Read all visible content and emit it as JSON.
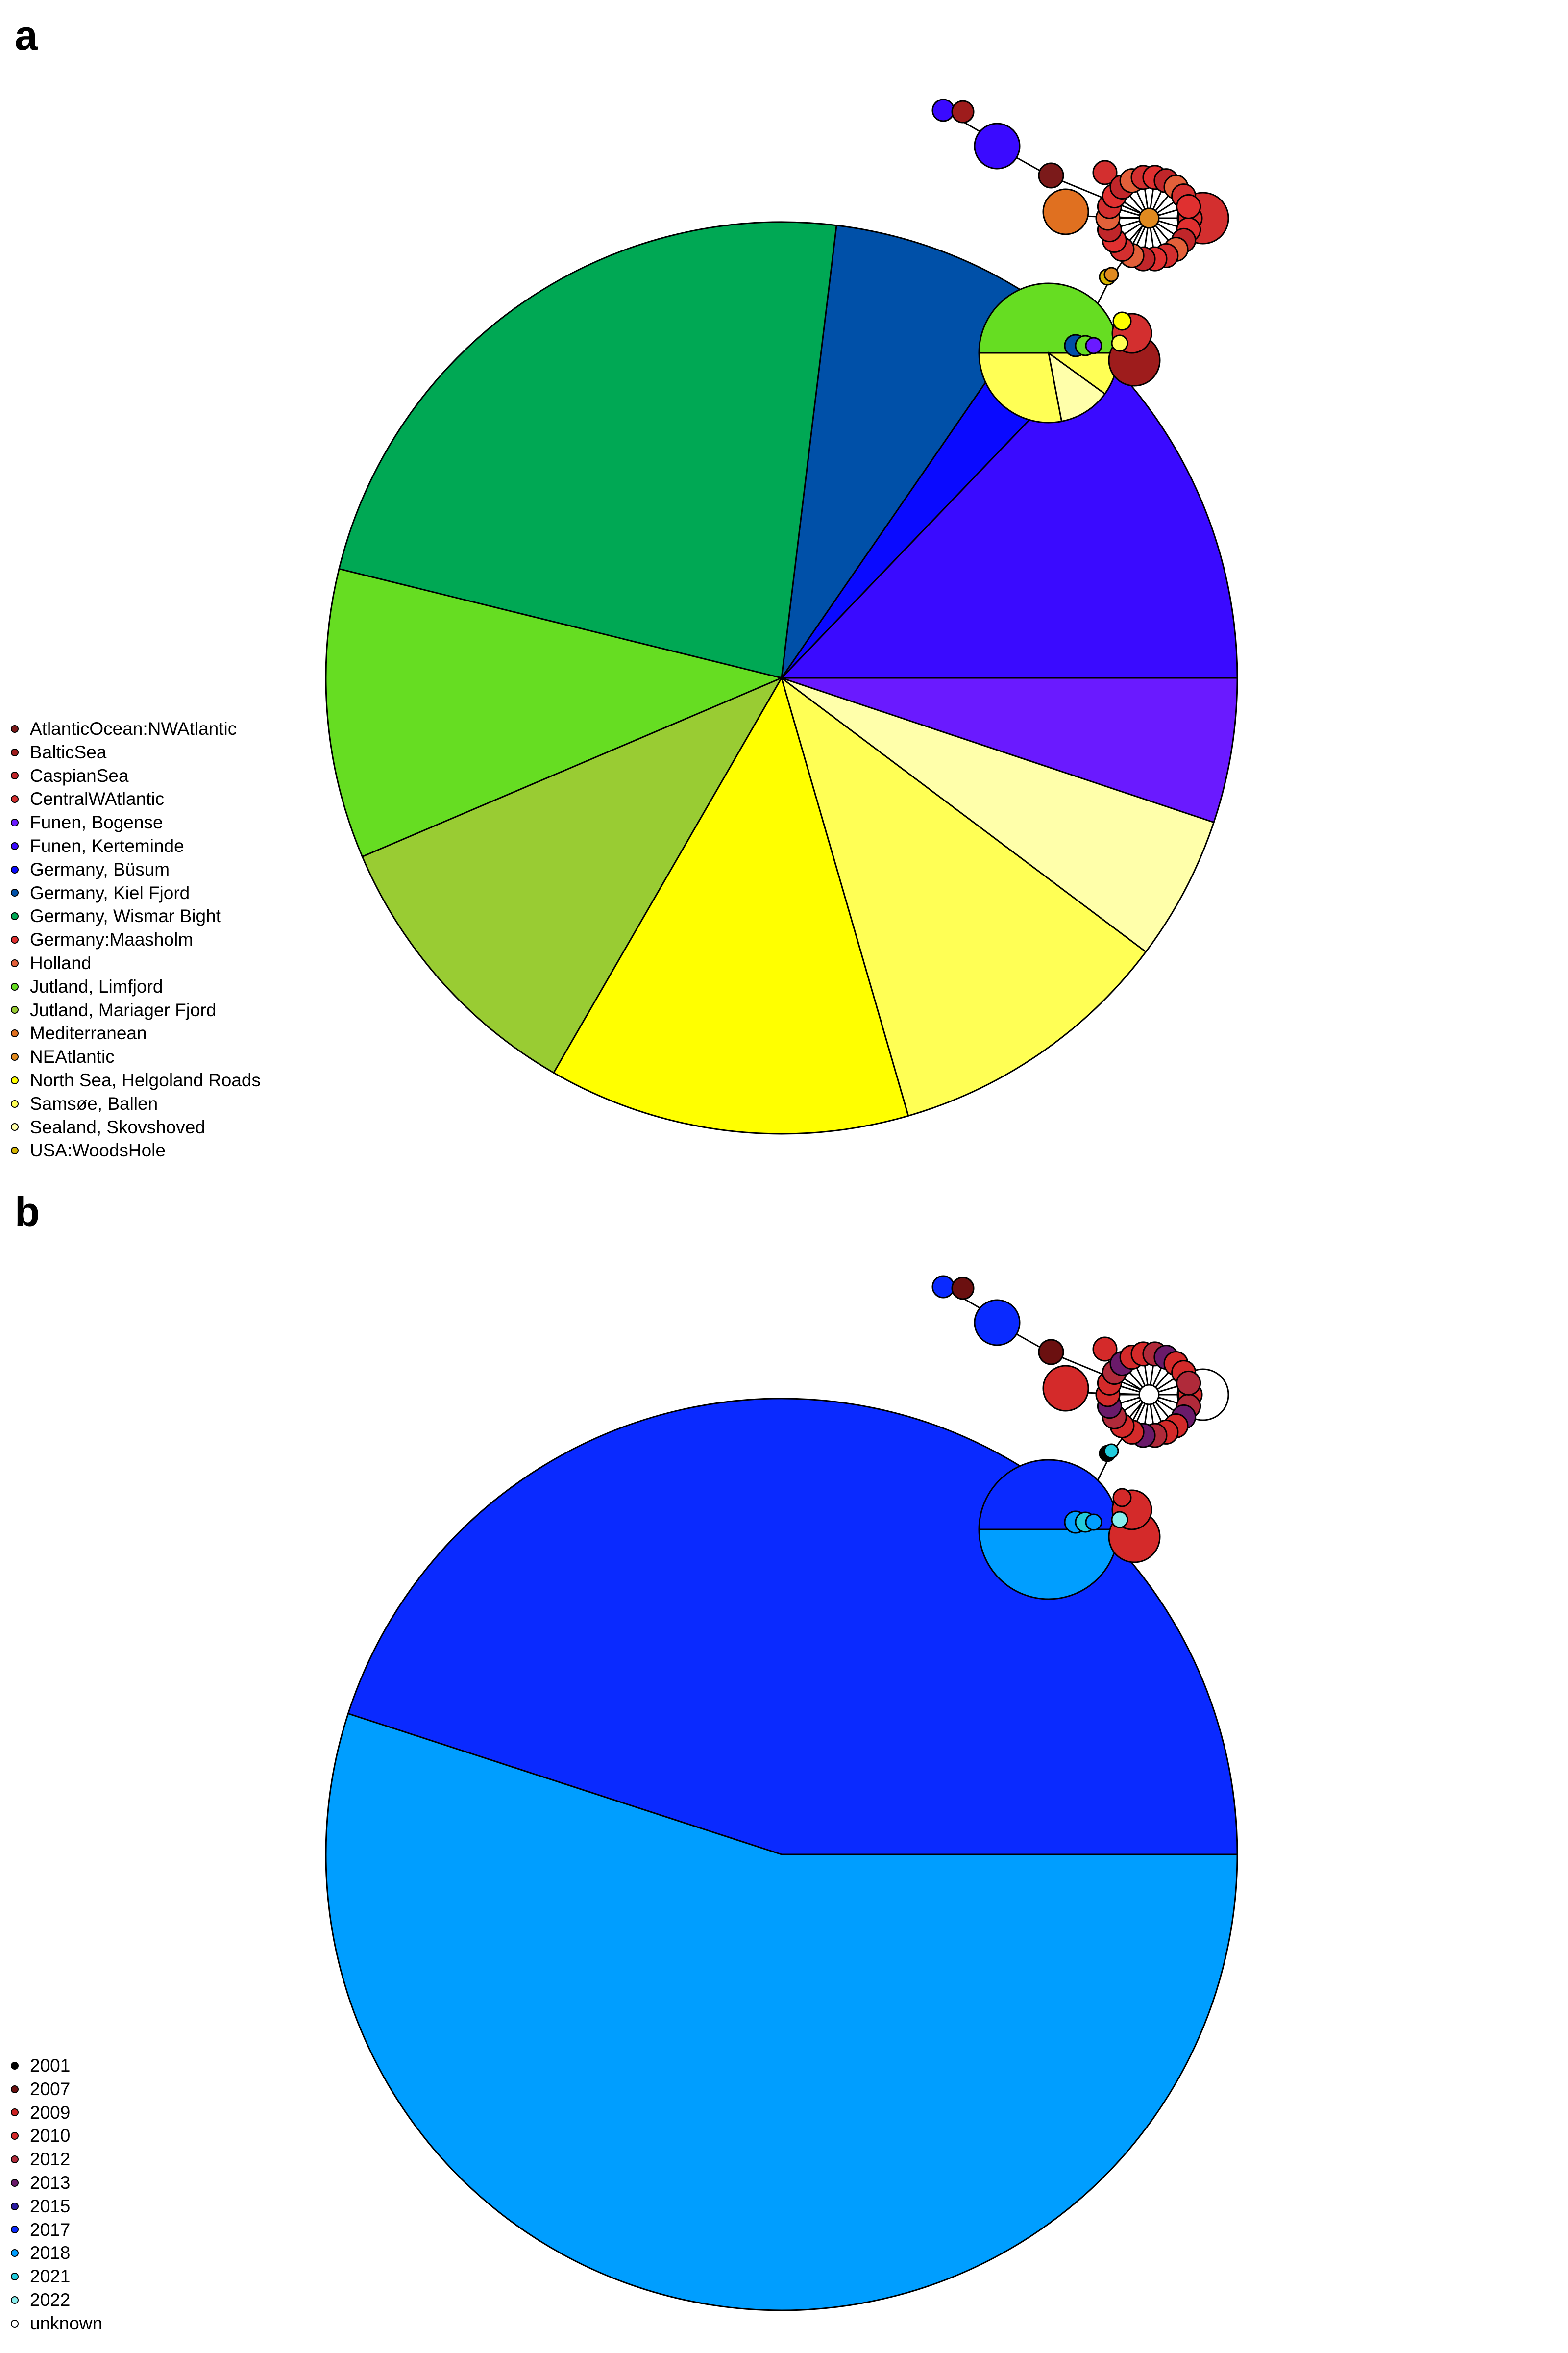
{
  "panels": [
    {
      "id": "a",
      "letter": "a",
      "legend": [
        {
          "label": "AtlanticOcean:NWAtlantic",
          "color": "#7b1a1a"
        },
        {
          "label": "BalticSea",
          "color": "#9e1c1c"
        },
        {
          "label": "CaspianSea",
          "color": "#c0262a"
        },
        {
          "label": "CentralWAtlantic",
          "color": "#d32f2f"
        },
        {
          "label": "Funen, Bogense",
          "color": "#6a1aff"
        },
        {
          "label": "Funen, Kerteminde",
          "color": "#3a0aff"
        },
        {
          "label": "Germany, Büsum",
          "color": "#0a0aff"
        },
        {
          "label": "Germany, Kiel Fjord",
          "color": "#0050a8"
        },
        {
          "label": "Germany, Wismar Bight",
          "color": "#00a854"
        },
        {
          "label": "Germany:Maasholm",
          "color": "#e03030"
        },
        {
          "label": "Holland",
          "color": "#e2603a"
        },
        {
          "label": "Jutland, Limfjord",
          "color": "#66dd22"
        },
        {
          "label": "Jutland, Mariager Fjord",
          "color": "#99cc33"
        },
        {
          "label": "Mediterranean",
          "color": "#e07020"
        },
        {
          "label": "NEAtlantic",
          "color": "#e08a20"
        },
        {
          "label": "North Sea, Helgoland Roads",
          "color": "#ffff00"
        },
        {
          "label": "Samsøe, Ballen",
          "color": "#ffff55"
        },
        {
          "label": "Sealand, Skovshoved",
          "color": "#ffffaa"
        },
        {
          "label": "USA:WoodsHole",
          "color": "#d4b400"
        }
      ],
      "big_pie": [
        {
          "label": "Funen, Kerteminde",
          "value": 12.5,
          "color": "#3a0aff"
        },
        {
          "label": "Germany, Büsum",
          "value": 2.5,
          "color": "#0a0aff"
        },
        {
          "label": "Germany, Kiel Fjord",
          "value": 7.5,
          "color": "#0050a8"
        },
        {
          "label": "Germany, Wismar Bight",
          "value": 22.5,
          "color": "#00a854"
        },
        {
          "label": "Jutland, Limfjord",
          "value": 10,
          "color": "#66dd22"
        },
        {
          "label": "Jutland, Mariager Fjord",
          "value": 10,
          "color": "#99cc33"
        },
        {
          "label": "North Sea, Helgoland Roads",
          "value": 12.5,
          "color": "#ffff00"
        },
        {
          "label": "Samsøe, Ballen",
          "value": 10,
          "color": "#ffff55"
        },
        {
          "label": "Sealand, Skovshoved",
          "value": 5,
          "color": "#ffffaa"
        },
        {
          "label": "Funen, Bogense",
          "value": 5,
          "color": "#6a1aff"
        }
      ],
      "mid_pie": [
        {
          "value": 50,
          "color": "#66dd22"
        },
        {
          "value": 28,
          "color": "#ffff55"
        },
        {
          "value": 12,
          "color": "#ffffaa"
        },
        {
          "value": 10,
          "color": "#ffff55"
        }
      ]
    },
    {
      "id": "b",
      "letter": "b",
      "legend": [
        {
          "label": "2001",
          "color": "#000000"
        },
        {
          "label": "2007",
          "color": "#6b1010"
        },
        {
          "label": "2009",
          "color": "#cc2222"
        },
        {
          "label": "2010",
          "color": "#d42a2a"
        },
        {
          "label": "2012",
          "color": "#b02a3a"
        },
        {
          "label": "2013",
          "color": "#6a1a6a"
        },
        {
          "label": "2015",
          "color": "#2a1aa0"
        },
        {
          "label": "2017",
          "color": "#0a2aff"
        },
        {
          "label": "2018",
          "color": "#009eff"
        },
        {
          "label": "2021",
          "color": "#22ccdd"
        },
        {
          "label": "2022",
          "color": "#88eeee"
        },
        {
          "label": "unknown",
          "color": "#ffffff"
        }
      ],
      "big_pie": [
        {
          "label": "2017",
          "value": 45,
          "color": "#0a2aff"
        },
        {
          "label": "2018",
          "value": 55,
          "color": "#009eff"
        }
      ],
      "mid_pie": [
        {
          "value": 50,
          "color": "#0a2aff"
        },
        {
          "value": 50,
          "color": "#009eff"
        }
      ]
    }
  ]
}
